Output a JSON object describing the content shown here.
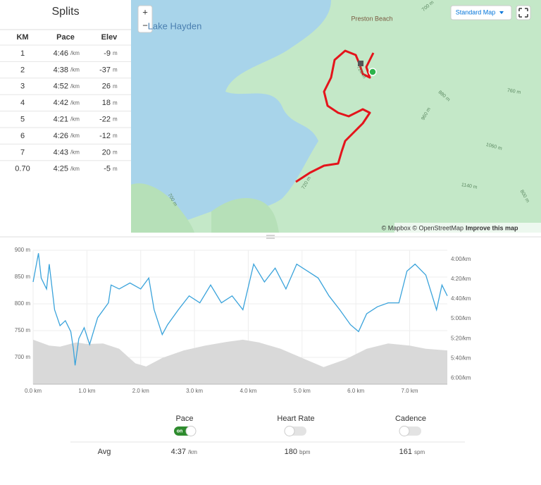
{
  "splits": {
    "title": "Splits",
    "columns": [
      "KM",
      "Pace",
      "Elev"
    ],
    "rows": [
      [
        "1",
        "4:46",
        "/km",
        "-9",
        "m"
      ],
      [
        "2",
        "4:38",
        "/km",
        "-37",
        "m"
      ],
      [
        "3",
        "4:52",
        "/km",
        "26",
        "m"
      ],
      [
        "4",
        "4:42",
        "/km",
        "18",
        "m"
      ],
      [
        "5",
        "4:21",
        "/km",
        "-22",
        "m"
      ],
      [
        "6",
        "4:26",
        "/km",
        "-12",
        "m"
      ],
      [
        "7",
        "4:43",
        "/km",
        "20",
        "m"
      ],
      [
        "0.70",
        "4:25",
        "/km",
        "-5",
        "m"
      ]
    ]
  },
  "map": {
    "lake_label": "Lake Hayden",
    "place_label": "Preston Beach",
    "contour_labels": [
      "700 m",
      "720 m",
      "760 m",
      "880 m",
      "960 m",
      "1060 m",
      "1140 m",
      "800 m",
      "720 m",
      "700 m"
    ],
    "style_button": "Standard Map",
    "zoom_in": "+",
    "zoom_out": "−",
    "attribution": "© Mapbox © OpenStreetMap",
    "improve_link": "Improve this map"
  },
  "chart_data": {
    "type": "line",
    "xlim": [
      0,
      7.7
    ],
    "xticks": [
      {
        "value": 0,
        "label": "0.0 km"
      },
      {
        "value": 1,
        "label": "1.0 km"
      },
      {
        "value": 2,
        "label": "2.0 km"
      },
      {
        "value": 3,
        "label": "3.0 km"
      },
      {
        "value": 4,
        "label": "4.0 km"
      },
      {
        "value": 5,
        "label": "5.0 km"
      },
      {
        "value": 6,
        "label": "6.0 km"
      },
      {
        "value": 7,
        "label": "7.0 km"
      }
    ],
    "ylim": [
      650,
      900
    ],
    "yticks": [
      {
        "value": 700,
        "label": "700 m"
      },
      {
        "value": 750,
        "label": "750 m"
      },
      {
        "value": 800,
        "label": "800 m"
      },
      {
        "value": 850,
        "label": "850 m"
      },
      {
        "value": 900,
        "label": "900 m"
      }
    ],
    "y2lim": [
      366,
      231
    ],
    "y2ticks": [
      {
        "value": 240,
        "label": "4:00/km"
      },
      {
        "value": 260,
        "label": "4:20/km"
      },
      {
        "value": 280,
        "label": "4:40/km"
      },
      {
        "value": 300,
        "label": "5:00/km"
      },
      {
        "value": 320,
        "label": "5:20/km"
      },
      {
        "value": 340,
        "label": "5:40/km"
      },
      {
        "value": 360,
        "label": "6:00/km"
      }
    ],
    "grid": true,
    "series": [
      {
        "kind": "area",
        "color": "#d9d9d9",
        "x": [
          0,
          0.3,
          0.5,
          0.8,
          1,
          1.3,
          1.6,
          1.9,
          2.1,
          2.4,
          2.8,
          3.2,
          3.6,
          3.9,
          4.2,
          4.6,
          5,
          5.4,
          5.8,
          6.2,
          6.6,
          7,
          7.3,
          7.7
        ],
        "values": [
          733,
          722,
          720,
          728,
          725,
          726,
          716,
          689,
          683,
          699,
          713,
          722,
          729,
          733,
          728,
          716,
          699,
          682,
          696,
          716,
          726,
          722,
          716,
          713
        ]
      },
      {
        "kind": "line",
        "color": "#3aa3db",
        "axis": "y2",
        "x": [
          0,
          0.1,
          0.15,
          0.25,
          0.3,
          0.4,
          0.5,
          0.6,
          0.7,
          0.75,
          0.78,
          0.85,
          0.95,
          1.05,
          1.2,
          1.4,
          1.45,
          1.6,
          1.8,
          2,
          2.15,
          2.25,
          2.4,
          2.5,
          2.7,
          2.9,
          3.1,
          3.3,
          3.5,
          3.7,
          3.9,
          4.1,
          4.3,
          4.5,
          4.7,
          4.9,
          5.1,
          5.3,
          5.5,
          5.7,
          5.9,
          6.05,
          6.2,
          6.4,
          6.6,
          6.8,
          6.95,
          7.1,
          7.3,
          7.5,
          7.6,
          7.7
        ],
        "values": [
          263,
          234,
          259,
          270,
          245,
          291,
          307,
          302,
          313,
          331,
          347,
          320,
          309,
          326,
          299,
          284,
          266,
          270,
          264,
          270,
          259,
          291,
          316,
          306,
          291,
          277,
          284,
          266,
          284,
          277,
          291,
          245,
          263,
          249,
          270,
          245,
          252,
          259,
          277,
          291,
          306,
          313,
          295,
          288,
          284,
          284,
          252,
          245,
          256,
          291,
          266,
          277
        ]
      }
    ]
  },
  "streams": {
    "toggles": [
      {
        "label": "Pace",
        "on": true,
        "state_label": "on"
      },
      {
        "label": "Heart Rate",
        "on": false
      },
      {
        "label": "Cadence",
        "on": false
      }
    ],
    "avg_label": "Avg",
    "averages": [
      {
        "value": "4:37",
        "unit": "/km"
      },
      {
        "value": "180",
        "unit": "bpm"
      },
      {
        "value": "161",
        "unit": "spm"
      }
    ]
  }
}
